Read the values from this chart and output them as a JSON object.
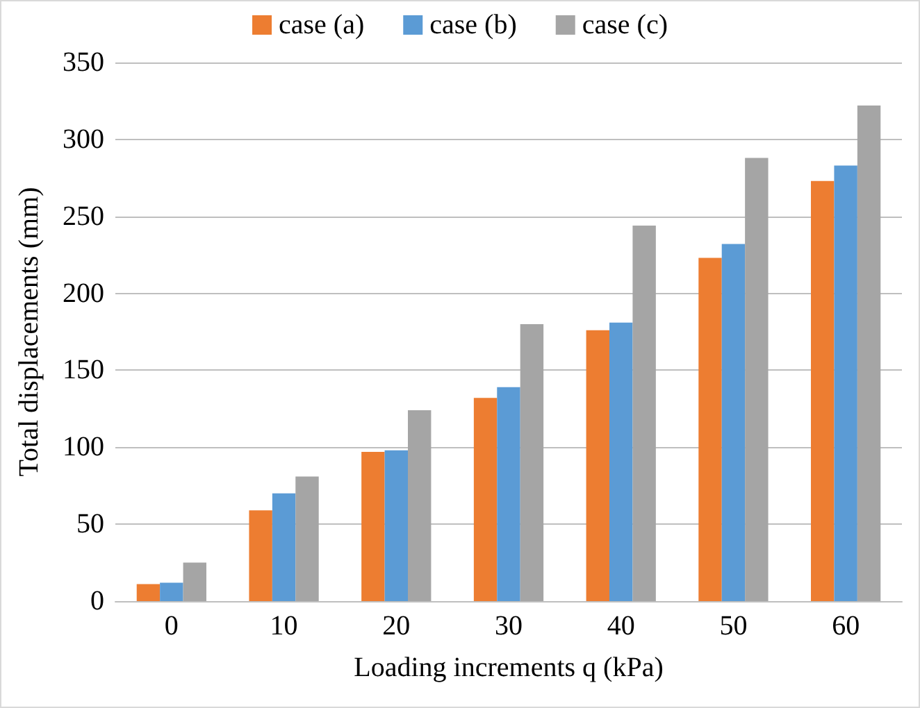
{
  "chart_data": {
    "type": "bar",
    "xlabel": "Loading increments q (kPa)",
    "ylabel": "Total displacements (mm)",
    "categories": [
      "0",
      "10",
      "20",
      "30",
      "40",
      "50",
      "60"
    ],
    "series": [
      {
        "name": "case (a)",
        "color": "#ed7d31",
        "values": [
          11,
          59,
          97,
          132,
          176,
          223,
          273
        ]
      },
      {
        "name": "case (b)",
        "color": "#5b9bd5",
        "values": [
          12,
          70,
          98,
          139,
          181,
          232,
          283
        ]
      },
      {
        "name": "case (c)",
        "color": "#a5a5a5",
        "values": [
          25,
          81,
          124,
          180,
          244,
          288,
          322
        ]
      }
    ],
    "ylim": [
      0,
      350
    ],
    "yticks": [
      0,
      50,
      100,
      150,
      200,
      250,
      300,
      350
    ],
    "grid": "y",
    "legend": "top"
  }
}
